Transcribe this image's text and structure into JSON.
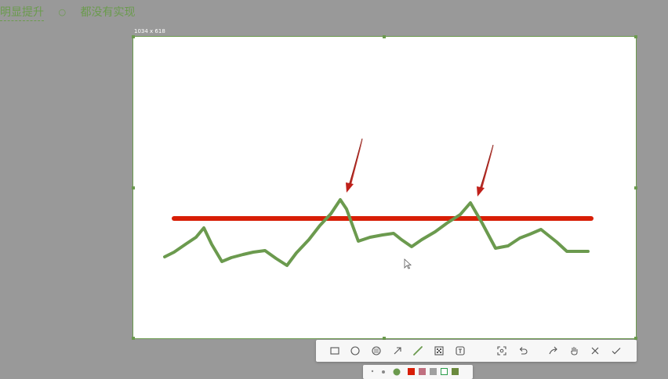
{
  "background_text": {
    "left": "明显提升",
    "separator": "○",
    "right": "都没有实现"
  },
  "capture": {
    "size_label": "1034 x 618"
  },
  "drawing": {
    "line_color": "#d81e06",
    "curve_color": "#6b9a4e",
    "arrow_color": "#c0201a"
  },
  "toolbar": {
    "tools": [
      {
        "name": "rectangle-tool",
        "icon": "rectangle-icon"
      },
      {
        "name": "ellipse-tool",
        "icon": "ellipse-icon"
      },
      {
        "name": "mosaic-tool",
        "icon": "mosaic-icon"
      },
      {
        "name": "arrow-tool",
        "icon": "arrow-icon"
      },
      {
        "name": "pen-tool",
        "icon": "pen-icon",
        "active": true
      },
      {
        "name": "blur-tool",
        "icon": "blur-icon"
      },
      {
        "name": "text-tool",
        "icon": "text-icon"
      },
      {
        "name": "ocr-tool",
        "icon": "scan-icon"
      },
      {
        "name": "undo-tool",
        "icon": "undo-icon"
      },
      {
        "name": "share-tool",
        "icon": "share-icon"
      },
      {
        "name": "pin-tool",
        "icon": "pin-icon"
      },
      {
        "name": "cancel-tool",
        "icon": "close-icon"
      },
      {
        "name": "confirm-tool",
        "icon": "check-icon"
      }
    ]
  },
  "color_palette": {
    "selected": "#6b9a4e",
    "swatches": [
      "#d81e06",
      "#c07080",
      "#a0a0a0",
      "#2a9d4a",
      "#6b9a4e"
    ]
  }
}
